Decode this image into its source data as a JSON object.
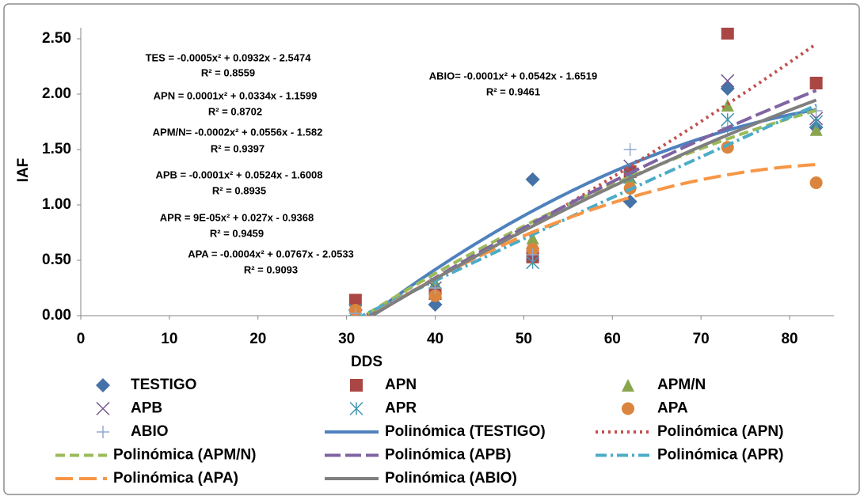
{
  "chart_data": {
    "type": "scatter",
    "x_label": "DDS",
    "y_label": "IAF",
    "x": [
      31,
      40,
      51,
      62,
      73,
      83
    ],
    "xlim": [
      0,
      85
    ],
    "xticks": [
      0,
      10,
      20,
      30,
      40,
      50,
      60,
      70,
      80
    ],
    "ylim": [
      0,
      2.6
    ],
    "yticks": [
      {
        "value": 0,
        "label": "0.00"
      },
      {
        "value": 0.5,
        "label": "0.50"
      },
      {
        "value": 1,
        "label": "1.00"
      },
      {
        "value": 1.5,
        "label": "1.50"
      },
      {
        "value": 2,
        "label": "2.00"
      },
      {
        "value": 2.5,
        "label": "2.50"
      }
    ],
    "trendline_degree": 2,
    "series": [
      {
        "name": "TESTIGO",
        "marker": "diamond",
        "color": "#4572a7",
        "values": [
          0.05,
          0.1,
          1.23,
          1.03,
          2.05,
          1.7
        ],
        "trendline_name": "Polinómica (TESTIGO)",
        "trendline_color": "#4f81bd",
        "trendline_dash": "none"
      },
      {
        "name": "APN",
        "marker": "square",
        "color": "#aa4643",
        "values": [
          0.14,
          0.2,
          0.53,
          1.3,
          2.55,
          2.1
        ],
        "trendline_name": "Polinómica (APN)",
        "trendline_color": "#c0504d",
        "trendline_dash": "3 5"
      },
      {
        "name": "APM/N",
        "marker": "triangle",
        "color": "#89a54e",
        "values": [
          0.05,
          0.3,
          0.7,
          1.25,
          1.9,
          1.68
        ],
        "trendline_name": "Polinómica (APM/N)",
        "trendline_color": "#9bbb59",
        "trendline_dash": "12 6"
      },
      {
        "name": "APB",
        "marker": "x",
        "color": "#71588f",
        "values": [
          0.05,
          0.25,
          0.55,
          1.35,
          2.12,
          1.78
        ],
        "trendline_name": "Polinómica (APB)",
        "trendline_color": "#8064a2",
        "trendline_dash": "20 6"
      },
      {
        "name": "APR",
        "marker": "asterisk",
        "color": "#4198af",
        "values": [
          0.05,
          0.3,
          0.48,
          1.25,
          1.77,
          1.75
        ],
        "trendline_name": "Polinómica (APR)",
        "trendline_color": "#4bacc6",
        "trendline_dash": "14 5 3 5"
      },
      {
        "name": "APA",
        "marker": "circle",
        "color": "#db843d",
        "values": [
          0.05,
          0.18,
          0.6,
          1.15,
          1.52,
          1.2
        ],
        "trendline_name": "Polinómica (APA)",
        "trendline_color": "#f79646",
        "trendline_dash": "22 8"
      },
      {
        "name": "ABIO",
        "marker": "plus",
        "color": "#93a9cf",
        "values": [
          0.02,
          0.25,
          0.55,
          1.5,
          1.7,
          1.85
        ],
        "trendline_name": "Polinómica (ABIO)",
        "trendline_color": "#7f7f7f",
        "trendline_dash": "none"
      }
    ],
    "annotations": [
      "TES = -0.0005x² + 0.0932x - 2.5474",
      "R² = 0.8559",
      "APN = 0.0001x² + 0.0334x - 1.1599",
      "R² = 0.8702",
      "APM/N= -0.0002x² + 0.0556x - 1.582",
      "R² = 0.9397",
      "APB = -0.0001x² + 0.0524x - 1.6008",
      "R² = 0.8935",
      "APR = 9E-05x² + 0.027x - 0.9368",
      "R² = 0.9459",
      "APA = -0.0004x² + 0.0767x - 2.0533",
      "R² = 0.9093",
      "ABIO= -0.0001x² + 0.0542x - 1.6519",
      "R² = 0.9461"
    ]
  }
}
